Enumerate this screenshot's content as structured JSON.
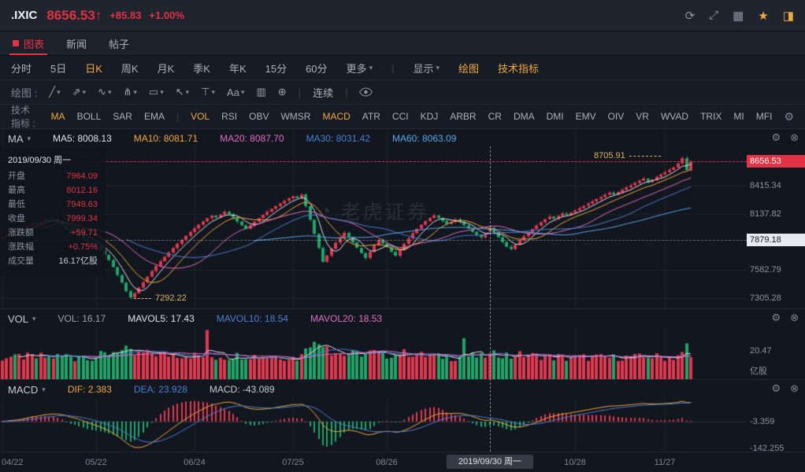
{
  "header": {
    "symbol": ".IXIC",
    "price": "8656.53",
    "arrow": "↑",
    "change": "+85.83",
    "change_pct": "+1.00%"
  },
  "tabs": {
    "items": [
      {
        "label": "图表",
        "active": true
      },
      {
        "label": "新闻",
        "active": false
      },
      {
        "label": "帖子",
        "active": false
      }
    ]
  },
  "toolbar": {
    "periods": [
      {
        "label": "分时"
      },
      {
        "label": "5日"
      },
      {
        "label": "日K",
        "active": true
      },
      {
        "label": "周K"
      },
      {
        "label": "月K"
      },
      {
        "label": "季K"
      },
      {
        "label": "年K"
      },
      {
        "label": "15分"
      },
      {
        "label": "60分"
      }
    ],
    "more": "更多",
    "display": "显示",
    "draw": "绘图",
    "tech": "技术指标"
  },
  "draw_bar": {
    "label": "绘图 :",
    "tools": [
      {
        "name": "trend-line",
        "glyph": "╱",
        "caret": true
      },
      {
        "name": "ray-line",
        "glyph": "⇗",
        "caret": true
      },
      {
        "name": "wave-line",
        "glyph": "∿",
        "caret": true
      },
      {
        "name": "channel",
        "glyph": "⋔",
        "caret": true
      },
      {
        "name": "rectangle",
        "glyph": "▭",
        "caret": true
      },
      {
        "name": "arrow-mark",
        "glyph": "↖",
        "caret": true
      },
      {
        "name": "vertical-line",
        "glyph": "⊤",
        "caret": true
      },
      {
        "name": "text-note",
        "glyph": "Aa",
        "caret": true
      },
      {
        "name": "pattern",
        "glyph": "▥",
        "caret": false
      },
      {
        "name": "magnify",
        "glyph": "⊕",
        "caret": false
      }
    ],
    "continuous": "连续"
  },
  "indicators": {
    "label": "技术指标 :",
    "items": [
      "MA",
      "BOLL",
      "SAR",
      "EMA",
      "|",
      "VOL",
      "RSI",
      "OBV",
      "WMSR",
      "MACD",
      "ATR",
      "CCI",
      "KDJ",
      "ARBR",
      "CR",
      "DMA",
      "DMI",
      "EMV",
      "OIV",
      "VR",
      "WVAD",
      "TRIX",
      "MI",
      "MFI"
    ],
    "active": [
      "MA",
      "VOL",
      "MACD"
    ]
  },
  "ma_panel": {
    "title": "MA",
    "legend": [
      {
        "label": "MA5: 8008.13",
        "color": "#dfe2e8"
      },
      {
        "label": "MA10: 8081.71",
        "color": "#f0a93a"
      },
      {
        "label": "MA20: 8087.70",
        "color": "#e06ec1"
      },
      {
        "label": "MA30: 8031.42",
        "color": "#4a7fd4"
      },
      {
        "label": "MA60: 8063.09",
        "color": "#58a6e8"
      }
    ]
  },
  "vol_panel": {
    "title": "VOL",
    "legend": [
      {
        "label": "VOL: 16.17",
        "color": "#9aa1ad"
      },
      {
        "label": "MAVOL5: 17.43",
        "color": "#dfe2e8"
      },
      {
        "label": "MAVOL10: 18.54",
        "color": "#4a7fd4"
      },
      {
        "label": "MAVOL20: 18.53",
        "color": "#e06ec1"
      }
    ],
    "axis": [
      "20.47",
      "亿股"
    ]
  },
  "macd_panel": {
    "title": "MACD",
    "legend": [
      {
        "label": "DIF: 2.383",
        "color": "#f0a93a"
      },
      {
        "label": "DEA: 23.928",
        "color": "#4a7fd4"
      },
      {
        "label": "MACD: -43.089",
        "color": "#c6cbd6"
      }
    ],
    "axis": [
      "-3.359",
      "-142.255"
    ]
  },
  "tooltip": {
    "date": "2019/09/30 周一",
    "rows": [
      {
        "label": "开盘",
        "value": "7964.09",
        "tone": "up"
      },
      {
        "label": "最高",
        "value": "8012.16",
        "tone": "up"
      },
      {
        "label": "最低",
        "value": "7949.63",
        "tone": "up"
      },
      {
        "label": "收盘",
        "value": "7999.34",
        "tone": "up"
      },
      {
        "label": "涨跌额",
        "value": "+59.71",
        "tone": "up"
      },
      {
        "label": "涨跌幅",
        "value": "+0.75%",
        "tone": "up"
      },
      {
        "label": "成交量",
        "value": "16.17亿股",
        "tone": "plain"
      }
    ]
  },
  "y_axis": {
    "main": [
      {
        "label": "8656.53",
        "type": "last"
      },
      {
        "label": "8415.34"
      },
      {
        "label": "8137.82"
      },
      {
        "label": "7879.18",
        "type": "cursor"
      },
      {
        "label": "7582.79"
      },
      {
        "label": "7305.28"
      }
    ]
  },
  "x_axis": {
    "labels": [
      {
        "text": "04/22",
        "idx": 0
      },
      {
        "text": "05/22",
        "idx": 22
      },
      {
        "text": "06/24",
        "idx": 45
      },
      {
        "text": "07/25",
        "idx": 68
      },
      {
        "text": "08/26",
        "idx": 90
      },
      {
        "text": "10/28",
        "idx": 134
      },
      {
        "text": "11/27",
        "idx": 155
      }
    ],
    "cursor": {
      "text": "2019/09/30 周一",
      "idx": 114
    }
  },
  "annotations": {
    "high": {
      "text": "8705.91",
      "idx": 159,
      "price": 8705.91
    },
    "low": {
      "text": "7292.22",
      "idx": 30,
      "price": 7292.22
    }
  },
  "watermark": "老虎证券",
  "chart_data": {
    "type": "candlestick",
    "symbol": ".IXIC",
    "period": "daily",
    "title": "NASDAQ Composite daily candlestick with MA(5,10,20,30,60), VOL and MACD sub-charts",
    "last_price": 8656.53,
    "change": 85.83,
    "change_pct": "+1.00%",
    "y_range": [
      7200,
      8980
    ],
    "grid_prices": [
      8656.53,
      8415.34,
      8137.82,
      7879.18,
      7582.79,
      7305.28
    ],
    "bar_pitch": 5.43,
    "closes": [
      7905,
      7930,
      7955,
      7940,
      7968,
      7995,
      8022,
      8048,
      8030,
      8060,
      8085,
      8065,
      8090,
      8058,
      8025,
      7988,
      7950,
      7965,
      7925,
      7888,
      7855,
      7838,
      7820,
      7778,
      7730,
      7680,
      7610,
      7532,
      7455,
      7370,
      7308,
      7350,
      7405,
      7460,
      7515,
      7570,
      7620,
      7668,
      7712,
      7755,
      7798,
      7840,
      7880,
      7920,
      7958,
      7995,
      8030,
      8062,
      8095,
      8120,
      8100,
      8132,
      8158,
      8135,
      8100,
      8062,
      8025,
      7990,
      8025,
      8060,
      8095,
      8128,
      8158,
      8188,
      8215,
      8242,
      8268,
      8292,
      8312,
      8295,
      8330,
      8215,
      8080,
      7940,
      7800,
      7662,
      7725,
      7790,
      7852,
      7905,
      7950,
      7908,
      7855,
      7800,
      7748,
      7700,
      7762,
      7825,
      7880,
      7845,
      7810,
      7762,
      7722,
      7780,
      7840,
      7895,
      7945,
      7990,
      8030,
      8065,
      8098,
      8122,
      8098,
      8068,
      8038,
      8060,
      8085,
      8058,
      8025,
      7992,
      7958,
      7930,
      7905,
      7939.63,
      7999.34,
      7952,
      7905,
      7858,
      7812,
      7788,
      7832,
      7875,
      7915,
      7952,
      7988,
      8022,
      8055,
      8085,
      8112,
      8090,
      8118,
      8142,
      8128,
      8152,
      8172,
      8195,
      8218,
      8240,
      8262,
      8285,
      8305,
      8328,
      8348,
      8330,
      8355,
      8378,
      8400,
      8422,
      8445,
      8468,
      8488,
      8452,
      8478,
      8505,
      8530,
      8552,
      8575,
      8598,
      8640,
      8690,
      8570.7,
      8656.53
    ],
    "overrides": {
      "30": {
        "low": 7292.22
      },
      "114": {
        "open": 7964.09,
        "high": 8012.16,
        "low": 7949.63,
        "close": 7999.34
      },
      "159": {
        "high": 8705.91
      },
      "161": {
        "open": 8570.7,
        "close": 8656.53
      }
    },
    "vol_max": 38,
    "vol_spikes": {
      "48": 36,
      "76": 24,
      "108": 30,
      "161": 16.17
    },
    "ma_periods": [
      5,
      10,
      20,
      30,
      60
    ],
    "colors": {
      "up": "#e0384f",
      "down": "#1fa567",
      "ma5": "#dfe2e8",
      "ma10": "#f0a93a",
      "ma20": "#e06ec1",
      "ma30": "#4a7fd4",
      "ma60": "#58a6e8",
      "mavol5": "#dfe2e8",
      "mavol10": "#4a7fd4",
      "mavol20": "#e06ec1",
      "dif": "#f0a93a",
      "dea": "#4a7fd4"
    }
  }
}
